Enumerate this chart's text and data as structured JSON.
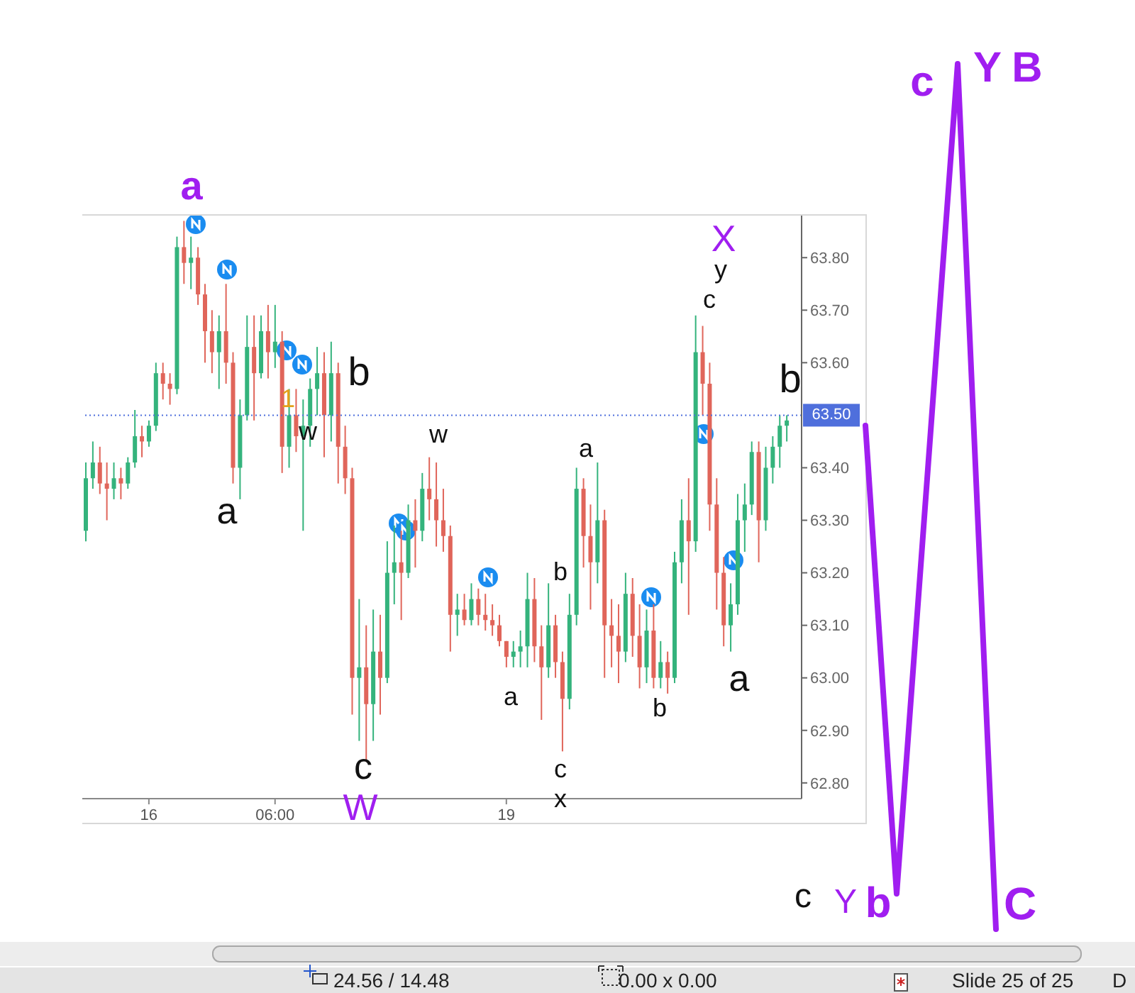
{
  "chart_data": {
    "type": "candlestick",
    "categories": [
      null,
      null,
      null,
      null,
      null,
      null,
      null,
      null,
      null,
      "16",
      null,
      null,
      null,
      null,
      null,
      null,
      null,
      null,
      null,
      null,
      null,
      null,
      null,
      null,
      null,
      null,
      null,
      "06:00",
      null,
      null,
      null,
      null,
      null,
      null,
      null,
      null,
      null,
      null,
      null,
      null,
      null,
      null,
      null,
      null,
      null,
      null,
      null,
      null,
      null,
      null,
      null,
      null,
      null,
      null,
      null,
      null,
      null,
      null,
      null,
      null,
      "19",
      null,
      null,
      null,
      null,
      null,
      null,
      null,
      null,
      null,
      null,
      null,
      null,
      null,
      null,
      null,
      null,
      null,
      null,
      null,
      null,
      null,
      null,
      null,
      null,
      null,
      null,
      null,
      null,
      null,
      null,
      null,
      null,
      null,
      null,
      null,
      null,
      null,
      null,
      null,
      null
    ],
    "ohlc": [
      [
        63.28,
        63.41,
        63.26,
        63.38
      ],
      [
        63.38,
        63.45,
        63.36,
        63.41
      ],
      [
        63.41,
        63.44,
        63.35,
        63.37
      ],
      [
        63.37,
        63.41,
        63.3,
        63.36
      ],
      [
        63.36,
        63.41,
        63.34,
        63.38
      ],
      [
        63.38,
        63.4,
        63.34,
        63.37
      ],
      [
        63.37,
        63.42,
        63.36,
        63.41
      ],
      [
        63.41,
        63.51,
        63.4,
        63.46
      ],
      [
        63.46,
        63.48,
        63.42,
        63.45
      ],
      [
        63.45,
        63.49,
        63.44,
        63.48
      ],
      [
        63.48,
        63.6,
        63.47,
        63.58
      ],
      [
        63.58,
        63.6,
        63.53,
        63.56
      ],
      [
        63.56,
        63.58,
        63.52,
        63.55
      ],
      [
        63.55,
        63.84,
        63.54,
        63.82
      ],
      [
        63.82,
        63.87,
        63.75,
        63.79
      ],
      [
        63.79,
        63.84,
        63.74,
        63.8
      ],
      [
        63.8,
        63.82,
        63.71,
        63.73
      ],
      [
        63.73,
        63.75,
        63.6,
        63.66
      ],
      [
        63.66,
        63.7,
        63.58,
        63.62
      ],
      [
        63.62,
        63.69,
        63.55,
        63.66
      ],
      [
        63.66,
        63.75,
        63.56,
        63.6
      ],
      [
        63.6,
        63.62,
        63.37,
        63.4
      ],
      [
        63.4,
        63.53,
        63.34,
        63.5
      ],
      [
        63.5,
        63.69,
        63.49,
        63.63
      ],
      [
        63.63,
        63.69,
        63.49,
        63.58
      ],
      [
        63.58,
        63.69,
        63.57,
        63.66
      ],
      [
        63.66,
        63.71,
        63.57,
        63.62
      ],
      [
        63.62,
        63.71,
        63.59,
        63.64
      ],
      [
        63.64,
        63.66,
        63.39,
        63.44
      ],
      [
        63.44,
        63.55,
        63.4,
        63.5
      ],
      [
        63.5,
        63.55,
        63.43,
        63.46
      ],
      [
        63.46,
        63.53,
        63.28,
        63.48
      ],
      [
        63.48,
        63.57,
        63.44,
        63.55
      ],
      [
        63.55,
        63.63,
        63.5,
        63.58
      ],
      [
        63.58,
        63.62,
        63.42,
        63.5
      ],
      [
        63.5,
        63.64,
        63.45,
        63.58
      ],
      [
        63.58,
        63.6,
        63.37,
        63.44
      ],
      [
        63.44,
        63.48,
        63.35,
        63.38
      ],
      [
        63.38,
        63.4,
        62.93,
        63.0
      ],
      [
        63.0,
        63.15,
        62.88,
        63.02
      ],
      [
        63.02,
        63.1,
        62.84,
        62.95
      ],
      [
        62.95,
        63.13,
        62.88,
        63.05
      ],
      [
        63.05,
        63.12,
        62.93,
        63.0
      ],
      [
        63.0,
        63.26,
        62.99,
        63.2
      ],
      [
        63.2,
        63.29,
        63.14,
        63.22
      ],
      [
        63.22,
        63.28,
        63.11,
        63.2
      ],
      [
        63.2,
        63.33,
        63.19,
        63.3
      ],
      [
        63.3,
        63.34,
        63.21,
        63.28
      ],
      [
        63.28,
        63.39,
        63.26,
        63.36
      ],
      [
        63.36,
        63.42,
        63.3,
        63.34
      ],
      [
        63.34,
        63.41,
        63.25,
        63.3
      ],
      [
        63.3,
        63.36,
        63.24,
        63.27
      ],
      [
        63.27,
        63.29,
        63.05,
        63.12
      ],
      [
        63.12,
        63.16,
        63.08,
        63.13
      ],
      [
        63.13,
        63.16,
        63.1,
        63.11
      ],
      [
        63.11,
        63.18,
        63.1,
        63.15
      ],
      [
        63.15,
        63.17,
        63.1,
        63.12
      ],
      [
        63.12,
        63.16,
        63.09,
        63.11
      ],
      [
        63.11,
        63.14,
        63.08,
        63.1
      ],
      [
        63.1,
        63.12,
        63.06,
        63.07
      ],
      [
        63.07,
        63.07,
        63.02,
        63.04
      ],
      [
        63.04,
        63.07,
        63.02,
        63.05
      ],
      [
        63.05,
        63.09,
        63.02,
        63.06
      ],
      [
        63.06,
        63.2,
        63.02,
        63.15
      ],
      [
        63.15,
        63.19,
        63.03,
        63.06
      ],
      [
        63.06,
        63.1,
        62.92,
        63.02
      ],
      [
        63.02,
        63.18,
        63.0,
        63.1
      ],
      [
        63.1,
        63.12,
        63.0,
        63.03
      ],
      [
        63.03,
        63.05,
        62.86,
        62.96
      ],
      [
        62.96,
        63.16,
        62.94,
        63.12
      ],
      [
        63.12,
        63.4,
        63.1,
        63.36
      ],
      [
        63.36,
        63.38,
        63.21,
        63.27
      ],
      [
        63.27,
        63.33,
        63.13,
        63.22
      ],
      [
        63.22,
        63.41,
        63.18,
        63.3
      ],
      [
        63.3,
        63.32,
        63.0,
        63.1
      ],
      [
        63.1,
        63.15,
        63.02,
        63.08
      ],
      [
        63.08,
        63.14,
        62.99,
        63.05
      ],
      [
        63.05,
        63.2,
        63.03,
        63.16
      ],
      [
        63.16,
        63.19,
        63.04,
        63.08
      ],
      [
        63.08,
        63.14,
        62.98,
        63.02
      ],
      [
        63.02,
        63.13,
        62.99,
        63.09
      ],
      [
        63.09,
        63.14,
        62.98,
        63.0
      ],
      [
        63.0,
        63.07,
        62.98,
        63.03
      ],
      [
        63.03,
        63.05,
        62.97,
        63.0
      ],
      [
        63.0,
        63.24,
        62.99,
        63.22
      ],
      [
        63.22,
        63.34,
        63.18,
        63.3
      ],
      [
        63.3,
        63.38,
        63.12,
        63.26
      ],
      [
        63.26,
        63.69,
        63.24,
        63.62
      ],
      [
        63.62,
        63.67,
        63.5,
        63.56
      ],
      [
        63.56,
        63.6,
        63.28,
        63.33
      ],
      [
        63.33,
        63.38,
        63.13,
        63.2
      ],
      [
        63.2,
        63.23,
        63.06,
        63.1
      ],
      [
        63.1,
        63.18,
        63.05,
        63.14
      ],
      [
        63.14,
        63.35,
        63.12,
        63.3
      ],
      [
        63.3,
        63.37,
        63.24,
        63.33
      ],
      [
        63.33,
        63.45,
        63.31,
        63.43
      ],
      [
        63.43,
        63.45,
        63.22,
        63.3
      ],
      [
        63.3,
        63.44,
        63.28,
        63.4
      ],
      [
        63.4,
        63.46,
        63.37,
        63.44
      ],
      [
        63.44,
        63.5,
        63.4,
        63.48
      ],
      [
        63.48,
        63.5,
        63.45,
        63.49
      ]
    ],
    "colors": [
      "#34b37c",
      "#34b37c",
      "#e0655a",
      "#e0655a",
      "#34b37c",
      "#e0655a",
      "#34b37c",
      "#34b37c",
      "#e0655a",
      "#34b37c",
      "#34b37c",
      "#e0655a",
      "#e0655a",
      "#34b37c",
      "#e0655a",
      "#34b37c",
      "#e0655a",
      "#e0655a",
      "#e0655a",
      "#34b37c",
      "#e0655a",
      "#e0655a",
      "#34b37c",
      "#34b37c",
      "#e0655a",
      "#34b37c",
      "#e0655a",
      "#34b37c",
      "#e0655a",
      "#34b37c",
      "#e0655a",
      "#34b37c",
      "#34b37c",
      "#34b37c",
      "#e0655a",
      "#34b37c",
      "#e0655a",
      "#e0655a",
      "#e0655a",
      "#34b37c",
      "#e0655a",
      "#34b37c",
      "#e0655a",
      "#34b37c",
      "#34b37c",
      "#e0655a",
      "#34b37c",
      "#e0655a",
      "#34b37c",
      "#e0655a",
      "#e0655a",
      "#e0655a",
      "#e0655a",
      "#34b37c",
      "#e0655a",
      "#34b37c",
      "#e0655a",
      "#e0655a",
      "#e0655a",
      "#e0655a",
      "#e0655a",
      "#34b37c",
      "#34b37c",
      "#34b37c",
      "#e0655a",
      "#e0655a",
      "#34b37c",
      "#e0655a",
      "#e0655a",
      "#34b37c",
      "#34b37c",
      "#e0655a",
      "#e0655a",
      "#34b37c",
      "#e0655a",
      "#e0655a",
      "#e0655a",
      "#34b37c",
      "#e0655a",
      "#e0655a",
      "#34b37c",
      "#e0655a",
      "#34b37c",
      "#e0655a",
      "#34b37c",
      "#34b37c",
      "#e0655a",
      "#34b37c",
      "#e0655a",
      "#e0655a",
      "#e0655a",
      "#e0655a",
      "#34b37c",
      "#34b37c",
      "#34b37c",
      "#34b37c",
      "#e0655a",
      "#34b37c",
      "#34b37c",
      "#34b37c",
      "#34b37c"
    ],
    "ylim": [
      62.77,
      63.88
    ],
    "yticks": [
      {
        "value": 62.8,
        "label": "62.80"
      },
      {
        "value": 62.9,
        "label": "62.90"
      },
      {
        "value": 63.0,
        "label": "63.00"
      },
      {
        "value": 63.1,
        "label": "63.10"
      },
      {
        "value": 63.2,
        "label": "63.20"
      },
      {
        "value": 63.3,
        "label": "63.30"
      },
      {
        "value": 63.4,
        "label": "63.40"
      },
      {
        "value": 63.6,
        "label": "63.60"
      },
      {
        "value": 63.7,
        "label": "63.70"
      },
      {
        "value": 63.8,
        "label": "63.80"
      }
    ],
    "ref_lines": [
      {
        "axis": "y",
        "value": 63.5,
        "label": "63.50",
        "color": "#4f6fdc",
        "line_style": "dotted"
      }
    ],
    "annotations": [
      "a",
      "a",
      "b",
      "1",
      "w",
      "w",
      "c",
      "W",
      "a",
      "b",
      "c",
      "x",
      "a",
      "b",
      "a",
      "X",
      "y",
      "c",
      "b",
      "c",
      "Y",
      "B",
      "c",
      "Y",
      "b",
      "C",
      "24.56 / 14.48",
      "0.00 x 0.00",
      "Slide 25 of 25",
      "D"
    ]
  }
}
